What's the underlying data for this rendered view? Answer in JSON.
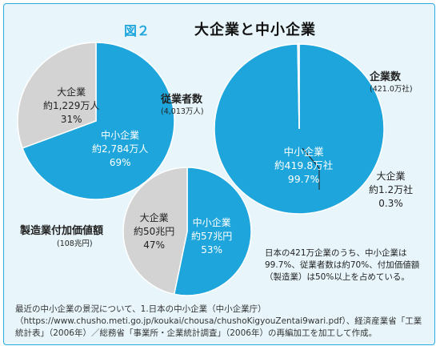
{
  "figure": {
    "number": "図２",
    "title": "大企業と中小企業"
  },
  "colors": {
    "sme": "#1ea6dc",
    "large": "#d3d3d3",
    "background": "#e8f6fc",
    "border": "#29abe2"
  },
  "chart_data": [
    {
      "type": "pie",
      "title": "従業者数",
      "subtitle": "(4,013万人)",
      "slices": [
        {
          "name": "中小企業",
          "value_text": "約2,784万人",
          "percent_text": "69%",
          "value": 2784,
          "percent": 69
        },
        {
          "name": "大企業",
          "value_text": "約1,229万人",
          "percent_text": "31%",
          "value": 1229,
          "percent": 31
        }
      ]
    },
    {
      "type": "pie",
      "title": "企業数",
      "subtitle": "(421.0万社)",
      "slices": [
        {
          "name": "中小企業",
          "value_text": "約419.8万社",
          "percent_text": "99.7%",
          "value": 419.8,
          "percent": 99.7
        },
        {
          "name": "大企業",
          "value_text": "約1.2万社",
          "percent_text": "0.3%",
          "value": 1.2,
          "percent": 0.3
        }
      ]
    },
    {
      "type": "pie",
      "title": "製造業付加価値額",
      "subtitle": "(108兆円)",
      "slices": [
        {
          "name": "中小企業",
          "value_text": "約57兆円",
          "percent_text": "53%",
          "value": 57,
          "percent": 53
        },
        {
          "name": "大企業",
          "value_text": "約50兆円",
          "percent_text": "47%",
          "value": 50,
          "percent": 47
        }
      ]
    }
  ],
  "note": "日本の421万企業のうち、中小企業は99.7%、従業者数は約70%、付加価値額（製造業）は50%以上を占めている。",
  "source": "最近の中小企業の景況について、1.日本の中小企業（中小企業庁）（https://www.chusho.meti.go.jp/koukai/chousa/chushoKigyouZentai9wari.pdf）、経済産業省「工業統計表」（2006年）／総務省「事業所・企業統計調査」（2006年）の再編加工を加工して作成。"
}
